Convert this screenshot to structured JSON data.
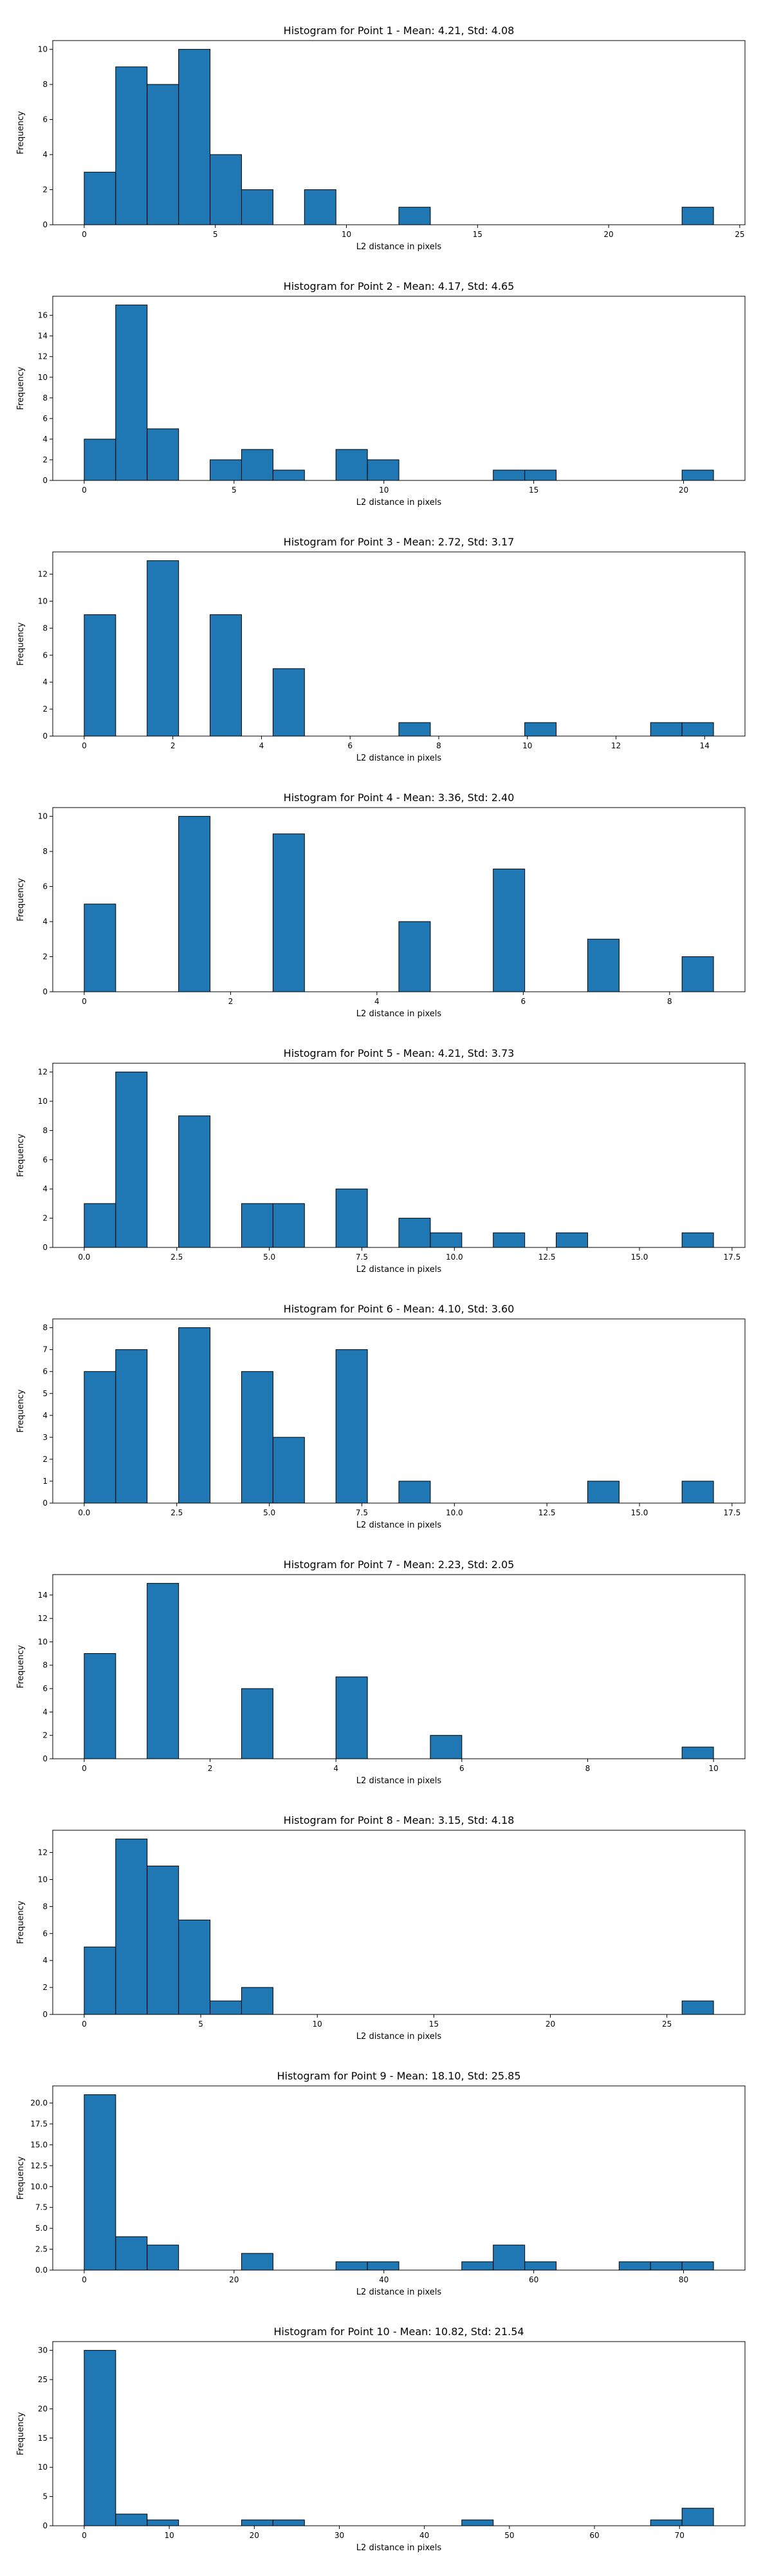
{
  "bar_color": "#1f77b4",
  "edge_color": "#000000",
  "chart_data": [
    {
      "type": "bar",
      "title": "Histogram for Point 1 - Mean: 4.21, Std: 4.08",
      "xlabel": "L2 distance in pixels",
      "ylabel": "Frequency",
      "xlim": [
        -1.2,
        25.2
      ],
      "ylim": [
        0,
        10.5
      ],
      "xticks": [
        0,
        5,
        10,
        15,
        20,
        25
      ],
      "yticks": [
        0,
        2,
        4,
        6,
        8,
        10
      ],
      "bin_edges": [
        0,
        1.2,
        2.4,
        3.6,
        4.8,
        6.0,
        7.2,
        8.4,
        9.6,
        10.8,
        12.0,
        13.2,
        14.4,
        15.6,
        16.8,
        18.0,
        19.2,
        20.4,
        21.6,
        22.8,
        24.0
      ],
      "values": [
        3,
        9,
        8,
        10,
        4,
        2,
        0,
        2,
        0,
        0,
        1,
        0,
        0,
        0,
        0,
        0,
        0,
        0,
        0,
        1
      ]
    },
    {
      "type": "bar",
      "title": "Histogram for Point 2 - Mean: 4.17, Std: 4.65",
      "xlabel": "L2 distance in pixels",
      "ylabel": "Frequency",
      "xlim": [
        -1.05,
        22.05
      ],
      "ylim": [
        0,
        17.85
      ],
      "xticks": [
        0,
        5,
        10,
        15,
        20
      ],
      "yticks": [
        0,
        2,
        4,
        6,
        8,
        10,
        12,
        14,
        16
      ],
      "bin_edges": [
        0,
        1.05,
        2.1,
        3.15,
        4.2,
        5.25,
        6.3,
        7.35,
        8.4,
        9.45,
        10.5,
        11.55,
        12.6,
        13.65,
        14.7,
        15.75,
        16.8,
        17.85,
        18.9,
        19.95,
        21.0
      ],
      "values": [
        4,
        17,
        5,
        0,
        2,
        3,
        1,
        0,
        3,
        2,
        0,
        0,
        0,
        1,
        1,
        0,
        0,
        0,
        0,
        1
      ]
    },
    {
      "type": "bar",
      "title": "Histogram for Point 3 - Mean: 2.72, Std: 3.17",
      "xlabel": "L2 distance in pixels",
      "ylabel": "Frequency",
      "xlim": [
        -0.71,
        14.91
      ],
      "ylim": [
        0,
        13.65
      ],
      "xticks": [
        0,
        2,
        4,
        6,
        8,
        10,
        12,
        14
      ],
      "yticks": [
        0,
        2,
        4,
        6,
        8,
        10,
        12
      ],
      "bin_edges": [
        0,
        0.71,
        1.42,
        2.13,
        2.84,
        3.55,
        4.26,
        4.97,
        5.68,
        6.39,
        7.1,
        7.81,
        8.52,
        9.23,
        9.94,
        10.65,
        11.36,
        12.07,
        12.78,
        13.49,
        14.2
      ],
      "values": [
        9,
        0,
        13,
        0,
        9,
        0,
        5,
        0,
        0,
        0,
        1,
        0,
        0,
        0,
        1,
        0,
        0,
        0,
        1,
        1
      ]
    },
    {
      "type": "bar",
      "title": "Histogram for Point 4 - Mean: 3.36, Std: 2.40",
      "xlabel": "L2 distance in pixels",
      "ylabel": "Frequency",
      "xlim": [
        -0.43,
        9.03
      ],
      "ylim": [
        0,
        10.5
      ],
      "xticks": [
        0,
        2,
        4,
        6,
        8
      ],
      "yticks": [
        0,
        2,
        4,
        6,
        8,
        10
      ],
      "bin_edges": [
        0,
        0.43,
        0.86,
        1.29,
        1.72,
        2.15,
        2.58,
        3.01,
        3.44,
        3.87,
        4.3,
        4.73,
        5.16,
        5.59,
        6.02,
        6.45,
        6.88,
        7.31,
        7.74,
        8.17,
        8.6
      ],
      "values": [
        5,
        0,
        0,
        10,
        0,
        0,
        9,
        0,
        0,
        0,
        4,
        0,
        0,
        7,
        0,
        0,
        3,
        0,
        0,
        2
      ]
    },
    {
      "type": "bar",
      "title": "Histogram for Point 5 - Mean: 4.21, Std: 3.73",
      "xlabel": "L2 distance in pixels",
      "ylabel": "Frequency",
      "xlim": [
        -0.85,
        17.85
      ],
      "ylim": [
        0,
        12.6
      ],
      "xticks": [
        0.0,
        2.5,
        5.0,
        7.5,
        10.0,
        12.5,
        15.0,
        17.5
      ],
      "xtick_labels": [
        "0.0",
        "2.5",
        "5.0",
        "7.5",
        "10.0",
        "12.5",
        "15.0",
        "17.5"
      ],
      "yticks": [
        0,
        2,
        4,
        6,
        8,
        10,
        12
      ],
      "bin_edges": [
        0,
        0.85,
        1.7,
        2.55,
        3.4,
        4.25,
        5.1,
        5.95,
        6.8,
        7.65,
        8.5,
        9.35,
        10.2,
        11.05,
        11.9,
        12.75,
        13.6,
        14.45,
        15.3,
        16.15,
        17.0
      ],
      "values": [
        3,
        12,
        0,
        9,
        0,
        3,
        3,
        0,
        4,
        0,
        2,
        1,
        0,
        1,
        0,
        1,
        0,
        0,
        0,
        1
      ]
    },
    {
      "type": "bar",
      "title": "Histogram for Point 6 - Mean: 4.10, Std: 3.60",
      "xlabel": "L2 distance in pixels",
      "ylabel": "Frequency",
      "xlim": [
        -0.85,
        17.85
      ],
      "ylim": [
        0,
        8.4
      ],
      "xticks": [
        0.0,
        2.5,
        5.0,
        7.5,
        10.0,
        12.5,
        15.0,
        17.5
      ],
      "xtick_labels": [
        "0.0",
        "2.5",
        "5.0",
        "7.5",
        "10.0",
        "12.5",
        "15.0",
        "17.5"
      ],
      "yticks": [
        0,
        1,
        2,
        3,
        4,
        5,
        6,
        7,
        8
      ],
      "bin_edges": [
        0,
        0.85,
        1.7,
        2.55,
        3.4,
        4.25,
        5.1,
        5.95,
        6.8,
        7.65,
        8.5,
        9.35,
        10.2,
        11.05,
        11.9,
        12.75,
        13.6,
        14.45,
        15.3,
        16.15,
        17.0
      ],
      "values": [
        6,
        7,
        0,
        8,
        0,
        6,
        3,
        0,
        7,
        0,
        1,
        0,
        0,
        0,
        0,
        0,
        1,
        0,
        0,
        1
      ]
    },
    {
      "type": "bar",
      "title": "Histogram for Point 7 - Mean: 2.23, Std: 2.05",
      "xlabel": "L2 distance in pixels",
      "ylabel": "Frequency",
      "xlim": [
        -0.5,
        10.5
      ],
      "ylim": [
        0,
        15.75
      ],
      "xticks": [
        0,
        2,
        4,
        6,
        8,
        10
      ],
      "yticks": [
        0,
        2,
        4,
        6,
        8,
        10,
        12,
        14
      ],
      "bin_edges": [
        0,
        0.5,
        1.0,
        1.5,
        2.0,
        2.5,
        3.0,
        3.5,
        4.0,
        4.5,
        5.0,
        5.5,
        6.0,
        6.5,
        7.0,
        7.5,
        8.0,
        8.5,
        9.0,
        9.5,
        10.0
      ],
      "values": [
        9,
        0,
        15,
        0,
        0,
        6,
        0,
        0,
        7,
        0,
        0,
        2,
        0,
        0,
        0,
        0,
        0,
        0,
        0,
        1
      ]
    },
    {
      "type": "bar",
      "title": "Histogram for Point 8 - Mean: 3.15, Std: 4.18",
      "xlabel": "L2 distance in pixels",
      "ylabel": "Frequency",
      "xlim": [
        -1.35,
        28.35
      ],
      "ylim": [
        0,
        13.65
      ],
      "xticks": [
        0,
        5,
        10,
        15,
        20,
        25
      ],
      "yticks": [
        0,
        2,
        4,
        6,
        8,
        10,
        12
      ],
      "bin_edges": [
        0,
        1.35,
        2.7,
        4.05,
        5.4,
        6.75,
        8.1,
        9.45,
        10.8,
        12.15,
        13.5,
        14.85,
        16.2,
        17.55,
        18.9,
        20.25,
        21.6,
        22.95,
        24.3,
        25.65,
        27.0
      ],
      "values": [
        5,
        13,
        11,
        7,
        1,
        2,
        0,
        0,
        0,
        0,
        0,
        0,
        0,
        0,
        0,
        0,
        0,
        0,
        0,
        1
      ]
    },
    {
      "type": "bar",
      "title": "Histogram for Point 9 - Mean: 18.10, Std: 25.85",
      "xlabel": "L2 distance in pixels",
      "ylabel": "Frequency",
      "xlim": [
        -4.2,
        88.2
      ],
      "ylim": [
        0,
        22.05
      ],
      "xticks": [
        0,
        20,
        40,
        60,
        80
      ],
      "yticks": [
        0.0,
        2.5,
        5.0,
        7.5,
        10.0,
        12.5,
        15.0,
        17.5,
        20.0
      ],
      "ytick_labels": [
        "0.0",
        "2.5",
        "5.0",
        "7.5",
        "10.0",
        "12.5",
        "15.0",
        "17.5",
        "20.0"
      ],
      "bin_edges": [
        0,
        4.2,
        8.4,
        12.6,
        16.8,
        21.0,
        25.2,
        29.4,
        33.6,
        37.8,
        42.0,
        46.2,
        50.4,
        54.6,
        58.8,
        63.0,
        67.2,
        71.4,
        75.6,
        79.8,
        84.0
      ],
      "values": [
        21,
        4,
        3,
        0,
        0,
        2,
        0,
        0,
        1,
        1,
        0,
        0,
        1,
        3,
        1,
        0,
        0,
        1,
        1,
        1
      ]
    },
    {
      "type": "bar",
      "title": "Histogram for Point 10 - Mean: 10.82, Std: 21.54",
      "xlabel": "L2 distance in pixels",
      "ylabel": "Frequency",
      "xlim": [
        -3.7,
        77.7
      ],
      "ylim": [
        0,
        31.5
      ],
      "xticks": [
        0,
        10,
        20,
        30,
        40,
        50,
        60,
        70
      ],
      "yticks": [
        0,
        5,
        10,
        15,
        20,
        25,
        30
      ],
      "bin_edges": [
        0,
        3.7,
        7.4,
        11.1,
        14.8,
        18.5,
        22.2,
        25.9,
        29.6,
        33.3,
        37.0,
        40.7,
        44.4,
        48.1,
        51.8,
        55.5,
        59.2,
        62.9,
        66.6,
        70.3,
        74.0
      ],
      "values": [
        30,
        2,
        1,
        0,
        0,
        1,
        1,
        0,
        0,
        0,
        0,
        0,
        1,
        0,
        0,
        0,
        0,
        0,
        1,
        3
      ]
    }
  ]
}
